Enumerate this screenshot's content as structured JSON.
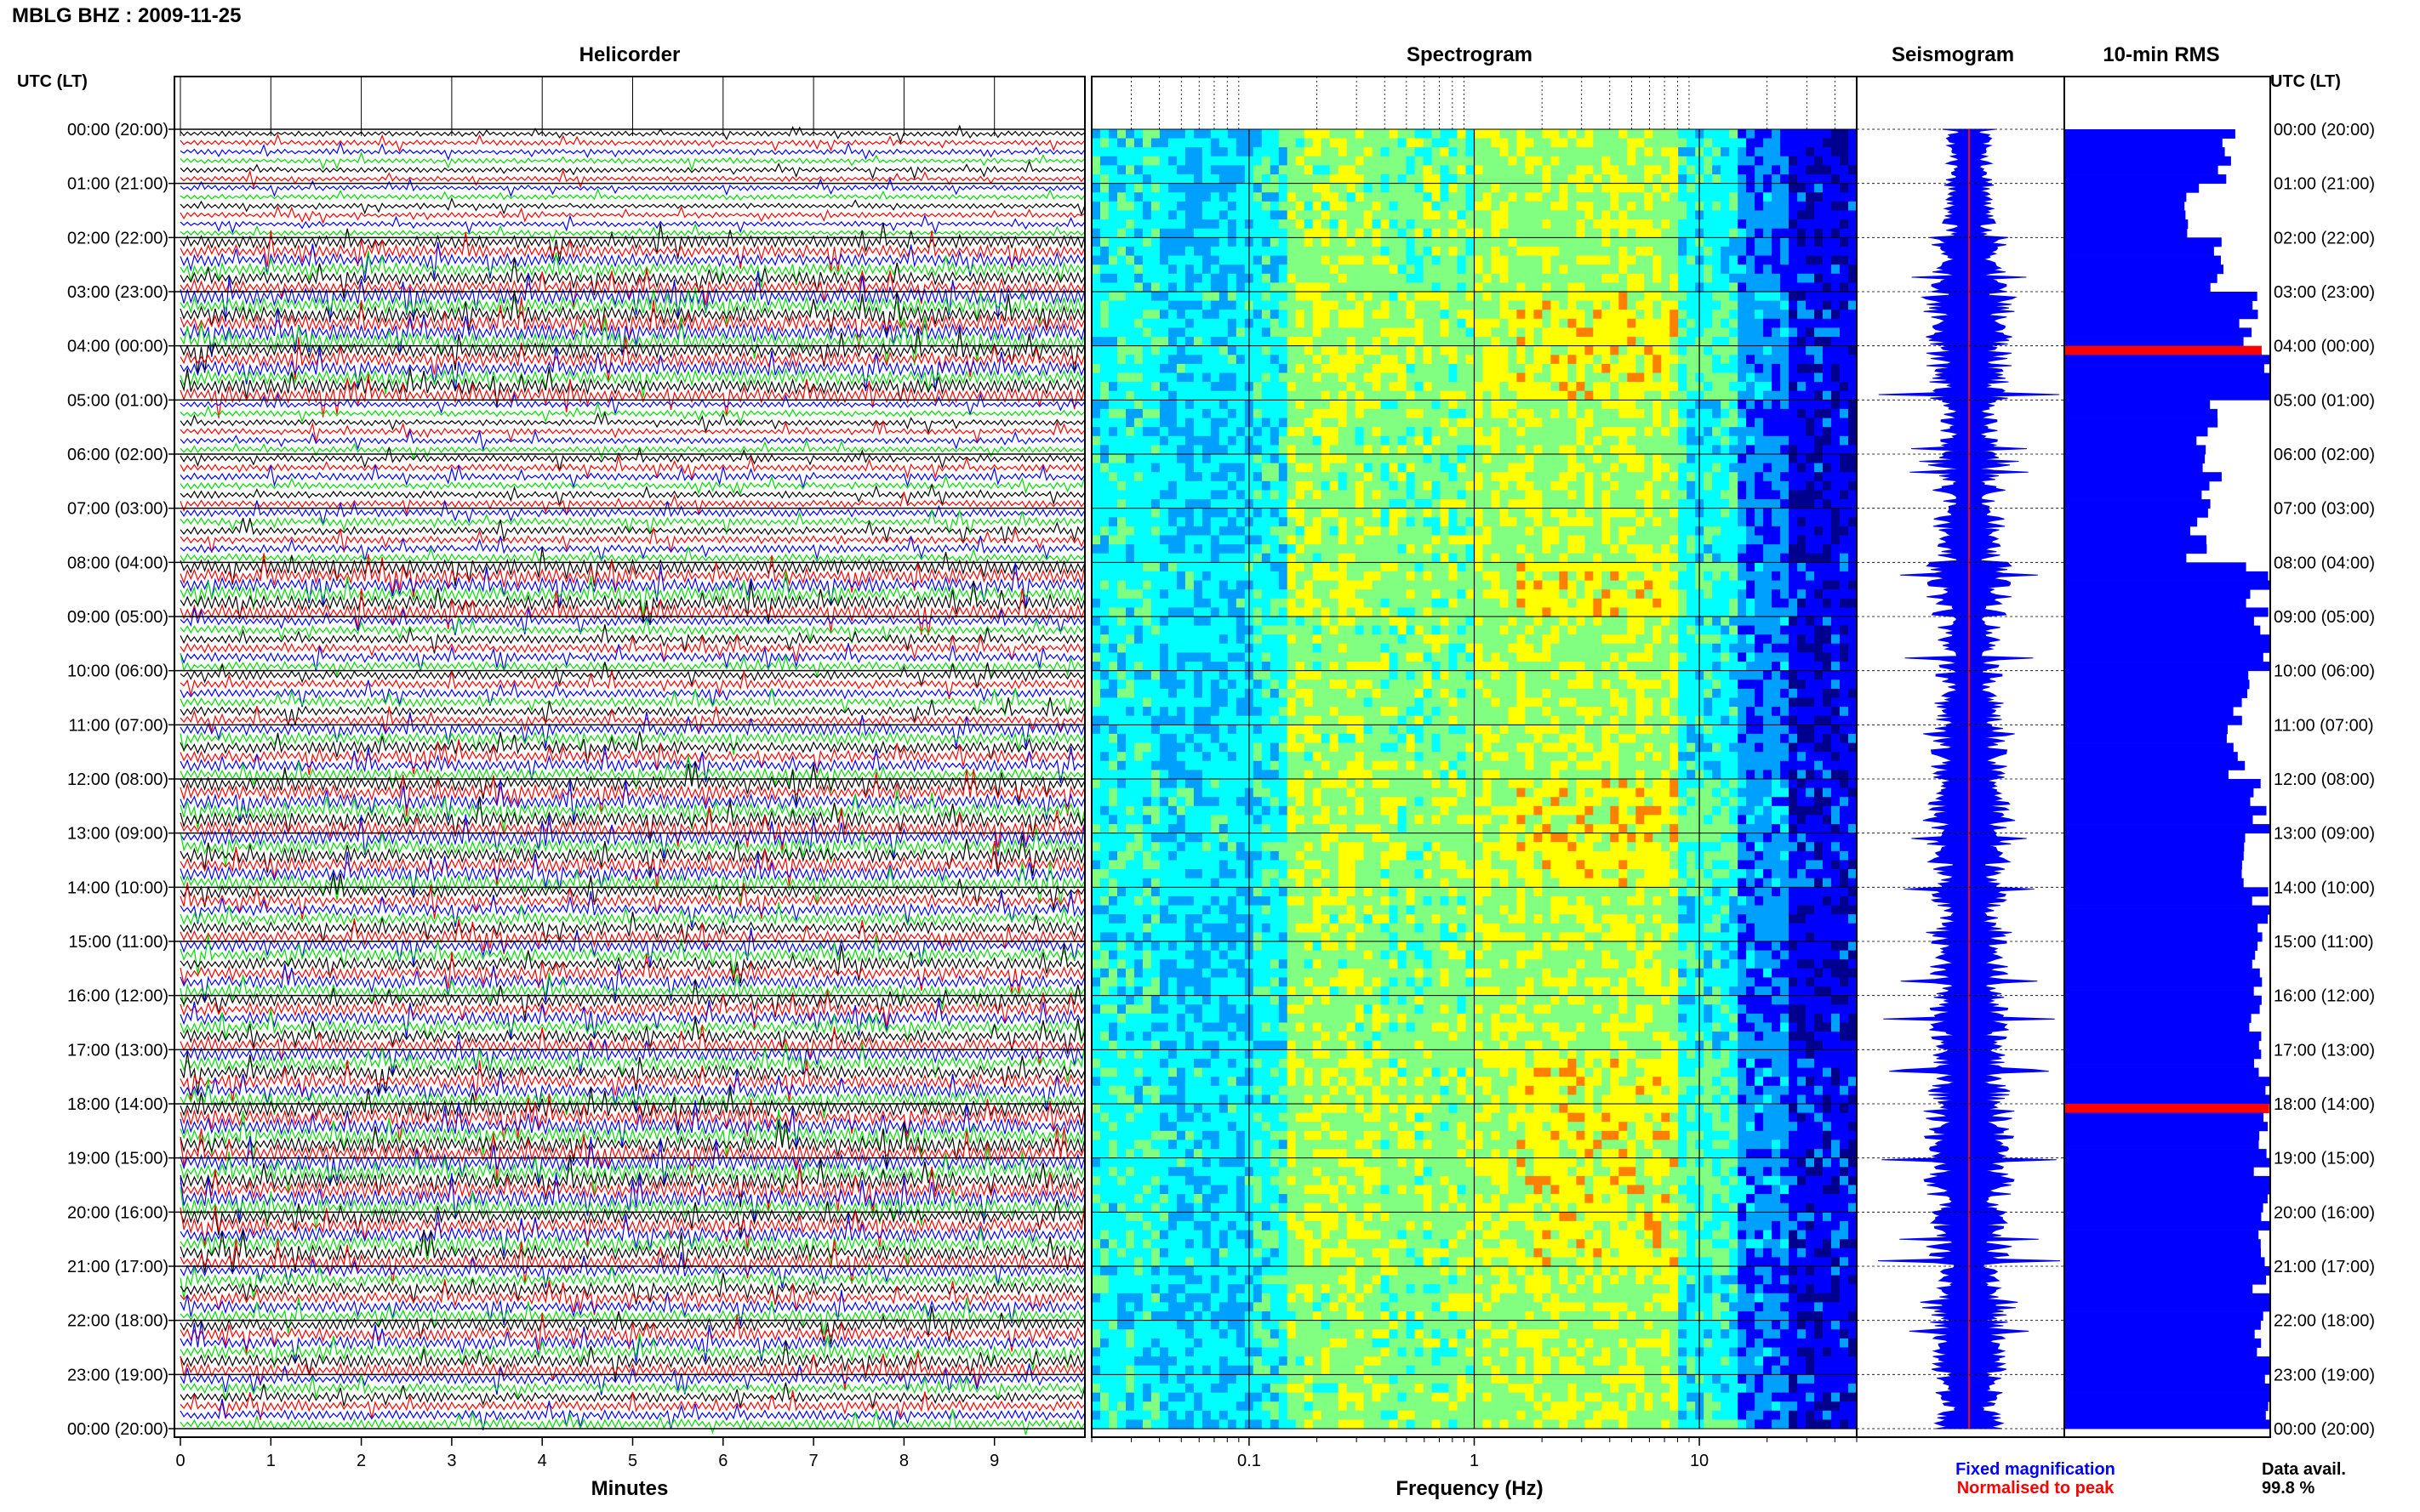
{
  "header": {
    "station_title": "MBLG BHZ : 2009-11-25"
  },
  "panels": {
    "helicorder": "Helicorder",
    "spectrogram": "Spectrogram",
    "seismogram": "Seismogram",
    "rms": "10-min RMS"
  },
  "axes": {
    "time_axis_label": "UTC (LT)",
    "minutes_label": "Minutes",
    "frequency_label": "Frequency (Hz)"
  },
  "legend": {
    "fixed": "Fixed magnification",
    "normalised": "Normalised to peak",
    "data_avail_label": "Data avail.",
    "data_avail_value": "99.8 %"
  },
  "colors": {
    "trace_colors": [
      "#000000",
      "#ff0000",
      "#0000ff",
      "#00dd00"
    ],
    "seismogram_fixed": "#0000ff",
    "seismogram_normalised": "#ff0000",
    "rms_bar": "#0000ff",
    "rms_peak": "#ff0000"
  },
  "chart_data": [
    {
      "type": "line",
      "name": "Helicorder",
      "title": "Helicorder",
      "xlabel": "Minutes",
      "ylabel": "UTC (LT)",
      "xlim": [
        0,
        10
      ],
      "x_ticks": [
        0,
        1,
        2,
        3,
        4,
        5,
        6,
        7,
        8,
        9
      ],
      "row_labels": [
        "00:00 (20:00)",
        "01:00 (21:00)",
        "02:00 (22:00)",
        "03:00 (23:00)",
        "04:00 (00:00)",
        "05:00 (01:00)",
        "06:00 (02:00)",
        "07:00 (03:00)",
        "08:00 (04:00)",
        "09:00 (05:00)",
        "10:00 (06:00)",
        "11:00 (07:00)",
        "12:00 (08:00)",
        "13:00 (09:00)",
        "14:00 (10:00)",
        "15:00 (11:00)",
        "16:00 (12:00)",
        "17:00 (13:00)",
        "18:00 (14:00)",
        "19:00 (15:00)",
        "20:00 (16:00)",
        "21:00 (17:00)",
        "22:00 (18:00)",
        "23:00 (19:00)",
        "00:00 (20:00)"
      ],
      "traces_per_hour": 6,
      "minutes_per_trace": 10
    },
    {
      "type": "heatmap",
      "name": "Spectrogram",
      "title": "Spectrogram",
      "xlabel": "Frequency (Hz)",
      "x_scale": "log",
      "xlim": [
        0.02,
        50
      ],
      "x_tick_labels": [
        "0.1",
        "1",
        "10"
      ],
      "x_ticks": [
        0.1,
        1,
        10
      ],
      "colormap": [
        "#00008f",
        "#0000ff",
        "#00a0ff",
        "#00ffff",
        "#80ff80",
        "#ffff00",
        "#ff8000",
        "#ff0000"
      ],
      "peak_band_hz": [
        0.15,
        10
      ],
      "strong_peak_hz": [
        2,
        5
      ]
    },
    {
      "type": "line",
      "name": "Seismogram",
      "title": "Seismogram",
      "series": [
        {
          "name": "Fixed magnification"
        },
        {
          "name": "Normalised to peak"
        }
      ]
    },
    {
      "type": "bar",
      "name": "10-min RMS",
      "title": "10-min RMS",
      "orientation": "horizontal",
      "bins": 144,
      "max_hours_marked": [
        4,
        18
      ],
      "hourly_values": [
        0.78,
        0.62,
        0.76,
        0.9,
        0.98,
        0.7,
        0.72,
        0.64,
        0.94,
        0.96,
        0.88,
        0.84,
        0.96,
        0.86,
        0.97,
        0.97,
        0.9,
        0.98,
        1.0,
        0.98,
        0.98,
        0.97,
        0.97,
        0.98
      ],
      "data_availability_percent": 99.8
    }
  ]
}
